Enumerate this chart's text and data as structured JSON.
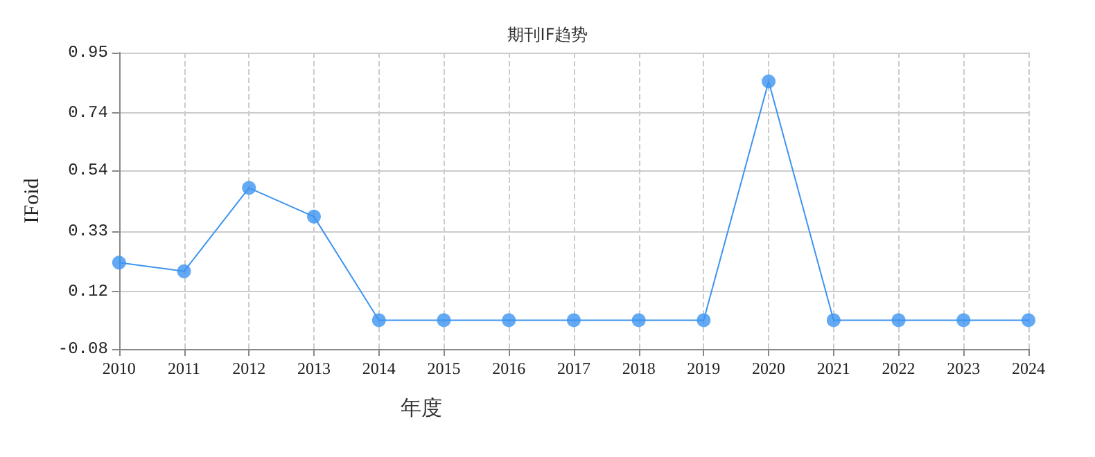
{
  "chart_data": {
    "type": "line",
    "title": "期刊IF趋势",
    "xlabel": "年度",
    "ylabel": "IFoid",
    "categories": [
      "2010",
      "2011",
      "2012",
      "2013",
      "2014",
      "2015",
      "2016",
      "2017",
      "2018",
      "2019",
      "2020",
      "2021",
      "2022",
      "2023",
      "2024"
    ],
    "series": [
      {
        "color": "#3d94f0",
        "values": [
          0.22,
          0.19,
          0.48,
          0.38,
          0.02,
          0.02,
          0.02,
          0.02,
          0.02,
          0.02,
          0.85,
          0.02,
          0.02,
          0.02,
          0.02
        ]
      }
    ],
    "ylim": [
      -0.08,
      0.95
    ],
    "yticks": [
      -0.08,
      0.12,
      0.33,
      0.54,
      0.74,
      0.95
    ],
    "grid": true,
    "marker": "circle",
    "line_style": "solid"
  }
}
